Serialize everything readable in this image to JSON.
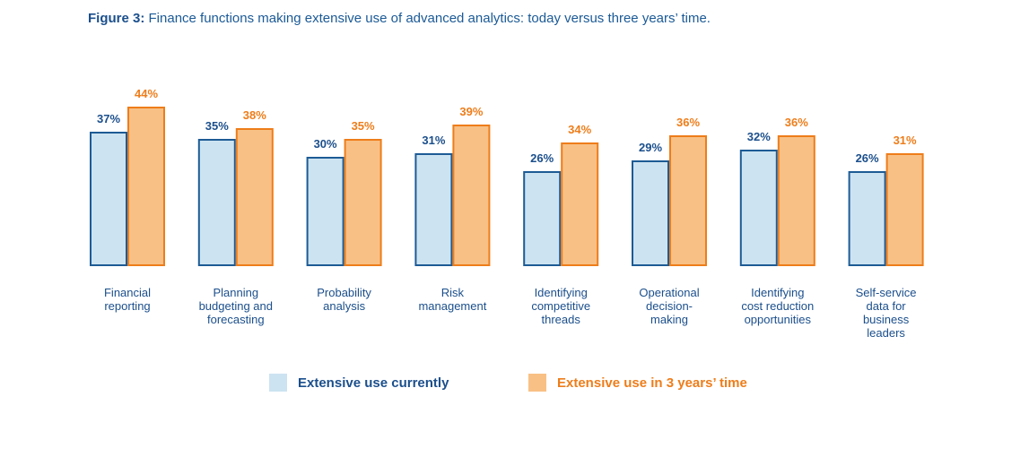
{
  "figure": {
    "label": "Figure 3:",
    "title": "Finance functions making extensive use of advanced analytics: today versus three years’ time."
  },
  "colors": {
    "current_fill": "#cce3f1",
    "current_stroke": "#1d5b95",
    "current_text": "#1b4f8c",
    "future_fill": "#f8c085",
    "future_stroke": "#ee7d1a",
    "future_text": "#ee7d1a",
    "category_text": "#1b4f8c"
  },
  "legend": {
    "current": "Extensive use currently",
    "future": "Extensive use in 3 years’ time"
  },
  "chart_data": {
    "type": "bar",
    "title": "Finance functions making extensive use of advanced analytics: today versus three years’ time.",
    "xlabel": "",
    "ylabel": "",
    "ylim": [
      0,
      44
    ],
    "grid": false,
    "legend_position": "bottom",
    "categories": [
      [
        "Financial",
        "reporting"
      ],
      [
        "Planning",
        "budgeting and",
        "forecasting"
      ],
      [
        "Probability",
        "analysis"
      ],
      [
        "Risk",
        "management"
      ],
      [
        "Identifying",
        "competitive",
        "threads"
      ],
      [
        "Operational",
        "decision-",
        "making"
      ],
      [
        "Identifying",
        "cost reduction",
        "opportunities"
      ],
      [
        "Self-service",
        "data for",
        "business",
        "leaders"
      ]
    ],
    "series": [
      {
        "name": "Extensive use currently",
        "values": [
          37,
          35,
          30,
          31,
          26,
          29,
          32,
          26
        ],
        "labels": [
          "37%",
          "35%",
          "30%",
          "31%",
          "26%",
          "29%",
          "32%",
          "26%"
        ]
      },
      {
        "name": "Extensive use in 3 years’ time",
        "values": [
          44,
          38,
          35,
          39,
          34,
          36,
          36,
          31
        ],
        "labels": [
          "44%",
          "38%",
          "35%",
          "39%",
          "34%",
          "36%",
          "36%",
          "31%"
        ]
      }
    ]
  }
}
